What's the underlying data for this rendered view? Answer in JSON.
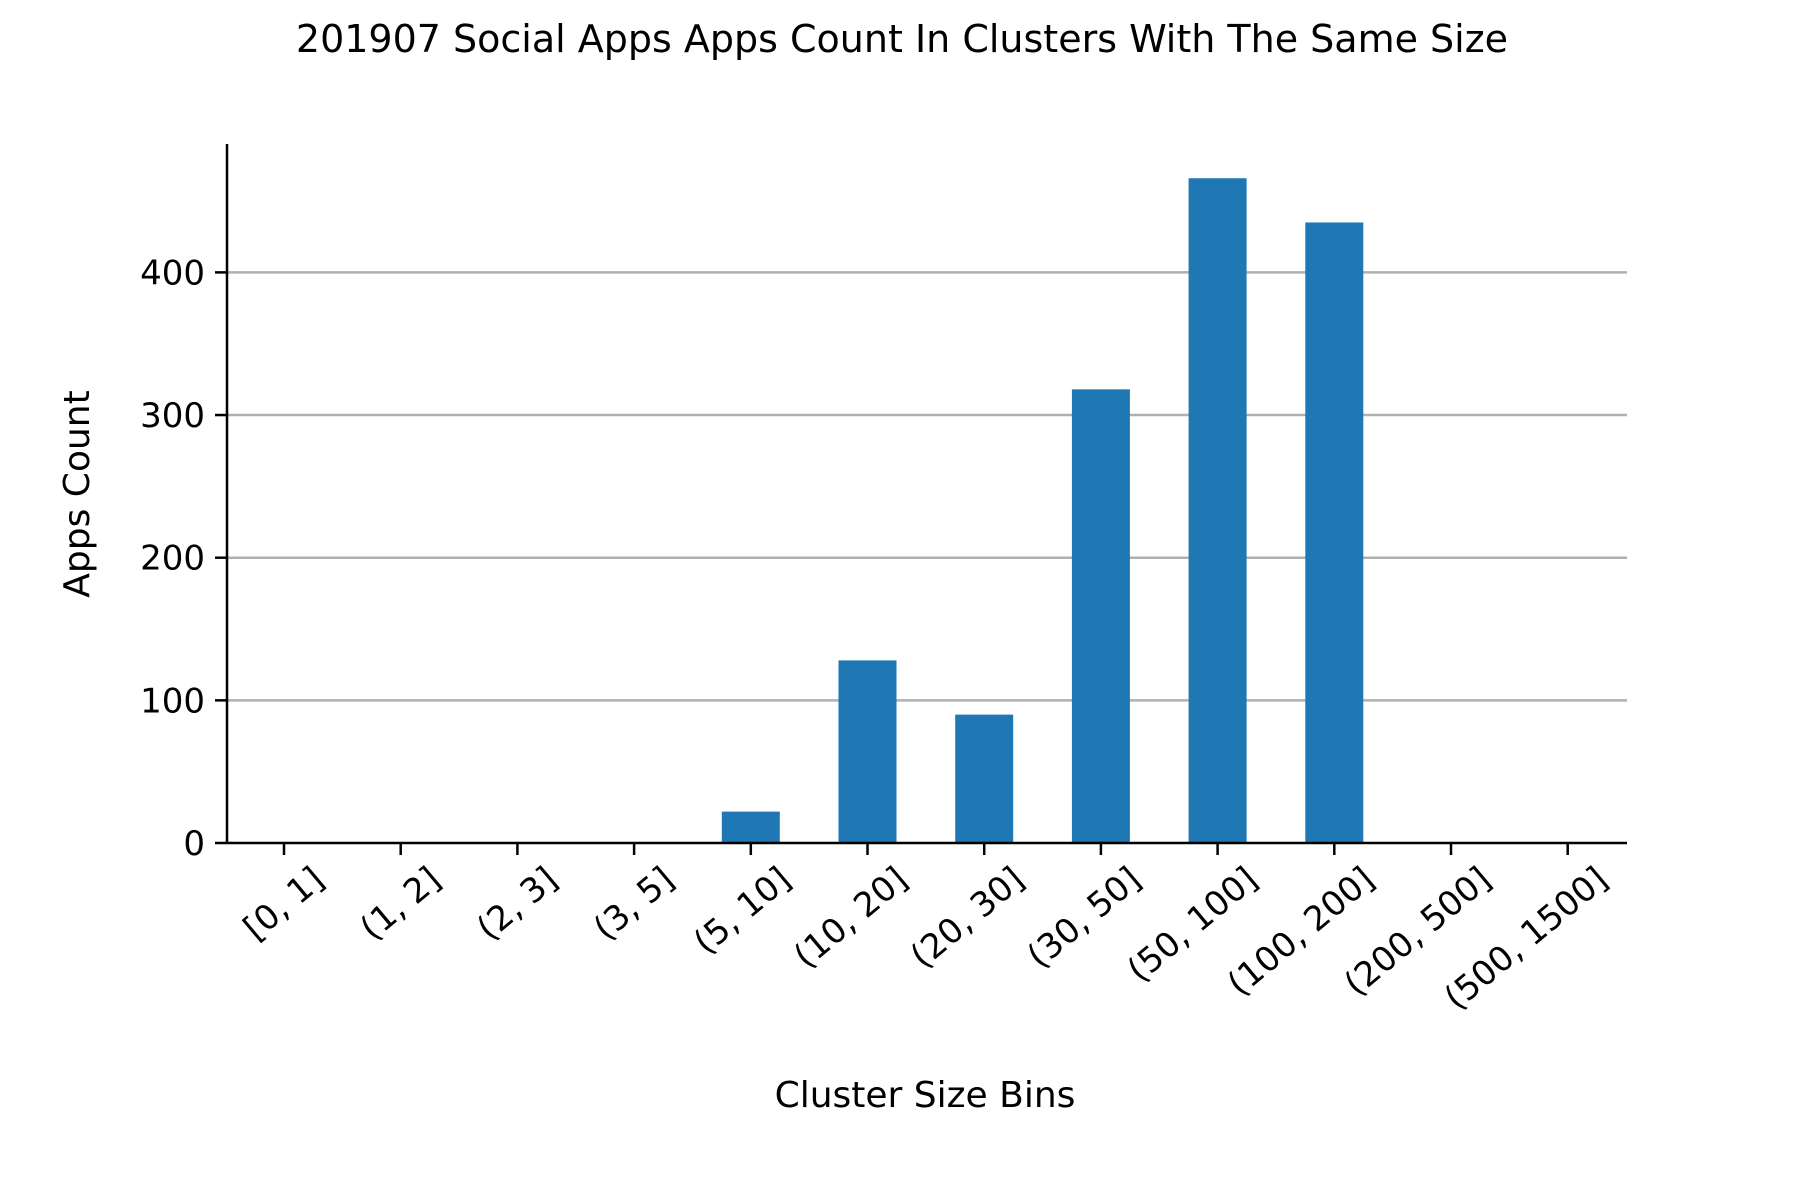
{
  "chart_data": {
    "type": "bar",
    "title": "201907 Social Apps Apps Count In Clusters With The Same Size",
    "xlabel": "Cluster Size Bins",
    "ylabel": "Apps Count",
    "categories": [
      "[0, 1]",
      "(1, 2]",
      "(2, 3]",
      "(3, 5]",
      "(5, 10]",
      "(10, 20]",
      "(20, 30]",
      "(30, 50]",
      "(50, 100]",
      "(100, 200]",
      "(200, 500]",
      "(500, 1500]"
    ],
    "values": [
      0,
      0,
      0,
      0,
      22,
      128,
      90,
      318,
      466,
      435,
      0,
      0
    ],
    "ylim": [
      0,
      490
    ],
    "yticks": [
      0,
      100,
      200,
      300,
      400
    ],
    "grid": "y",
    "bar_color": "#1f77b4"
  }
}
